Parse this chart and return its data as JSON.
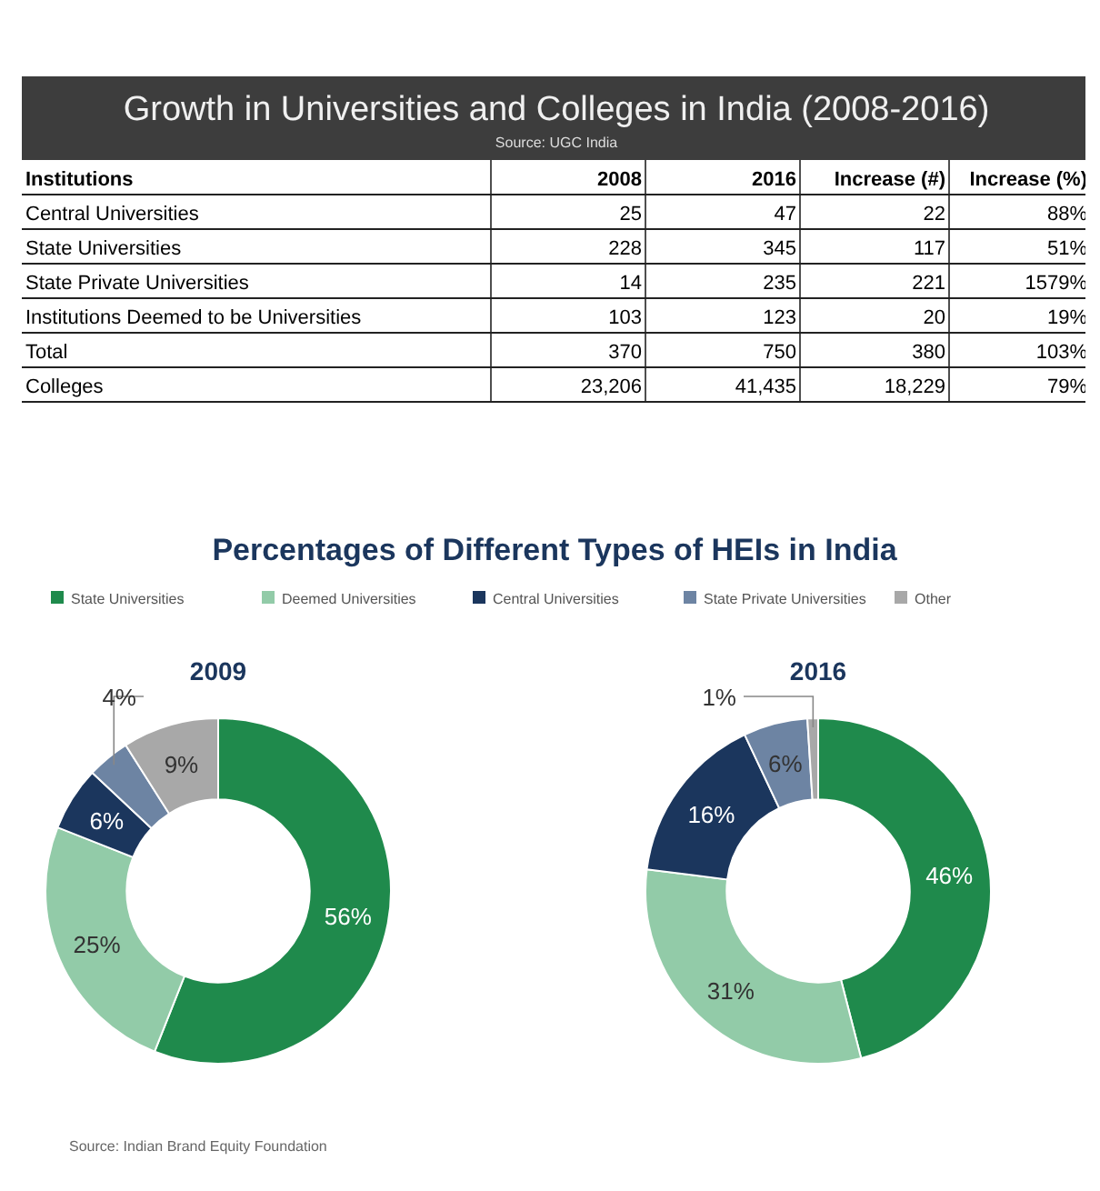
{
  "chart_data": [
    {
      "type": "other",
      "title": "Growth in Universities and Colleges in India (2008-2016)",
      "subtitle": "Source: UGC India",
      "ylabel": "Institutions",
      "categories": [
        "2008",
        "2016",
        "Increase (#)",
        "Increase (%)"
      ],
      "y_categories": [
        "Central Universities",
        "State Universities",
        "State Private Universities",
        "Institutions Deemed to be Universities",
        "Total",
        "Colleges"
      ],
      "cell_labels": [
        [
          "25",
          "47",
          "22",
          "88%"
        ],
        [
          "228",
          "345",
          "117",
          "51%"
        ],
        [
          "14",
          "235",
          "221",
          "1579%"
        ],
        [
          "103",
          "123",
          "20",
          "19%"
        ],
        [
          "370",
          "750",
          "380",
          "103%"
        ],
        [
          "23,206",
          "41,435",
          "18,229",
          "79%"
        ]
      ]
    },
    {
      "type": "donut",
      "title": "Percentages of Different Types of HEIs in India",
      "legend": "top",
      "categories": [
        "State Universities",
        "Deemed Universities",
        "Central Universities",
        "State Private Universities",
        "Other"
      ],
      "colors": [
        "#1f8a4c",
        "#92cba8",
        "#1b365d",
        "#6d84a3",
        "#a8a8a8"
      ],
      "series": [
        {
          "name": "2009",
          "values": [
            56,
            25,
            6,
            4,
            9
          ],
          "value_labels": [
            "56%",
            "25%",
            "6%",
            "4%",
            "9%"
          ]
        },
        {
          "name": "2016",
          "values": [
            46,
            31,
            16,
            6,
            1
          ],
          "value_labels": [
            "46%",
            "31%",
            "16%",
            "6%",
            "1%"
          ]
        }
      ],
      "annotations": [
        "Source: Indian Brand Equity Foundation"
      ]
    }
  ]
}
